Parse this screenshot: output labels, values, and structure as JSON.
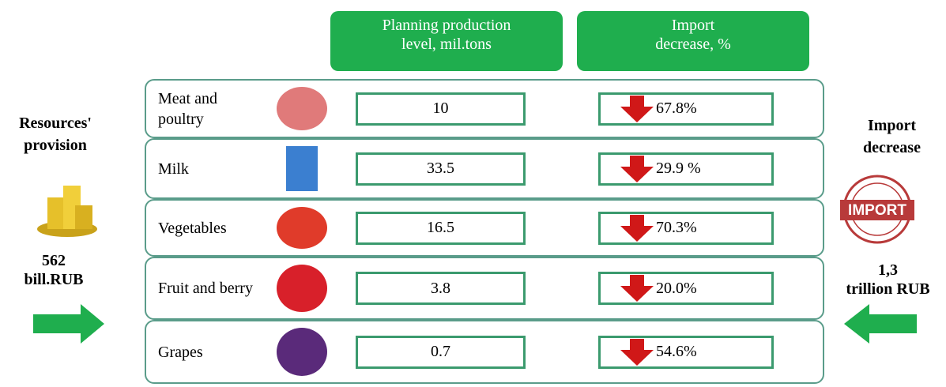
{
  "header": {
    "columns": [
      [
        "Planning production",
        "level, mil.tons"
      ],
      [
        "Import",
        "decrease, %"
      ]
    ]
  },
  "left": {
    "title": [
      "Resources'",
      "provision"
    ],
    "amount": [
      "562",
      "bill.RUB"
    ]
  },
  "right": {
    "title": [
      "Import",
      "decrease"
    ],
    "amount": [
      "1,3",
      "trillion RUB"
    ],
    "stamp": "IMPORT"
  },
  "rows": [
    {
      "name": "Meat and poultry",
      "production": "10",
      "import_decrease": "67.8%"
    },
    {
      "name": "Milk",
      "production": "33.5",
      "import_decrease": "29.9 %"
    },
    {
      "name": "Vegetables",
      "production": "16.5",
      "import_decrease": "70.3%"
    },
    {
      "name": "Fruit and berry",
      "production": "3.8",
      "import_decrease": "20.0%"
    },
    {
      "name": "Grapes",
      "production": "0.7",
      "import_decrease": "54.6%"
    }
  ]
}
